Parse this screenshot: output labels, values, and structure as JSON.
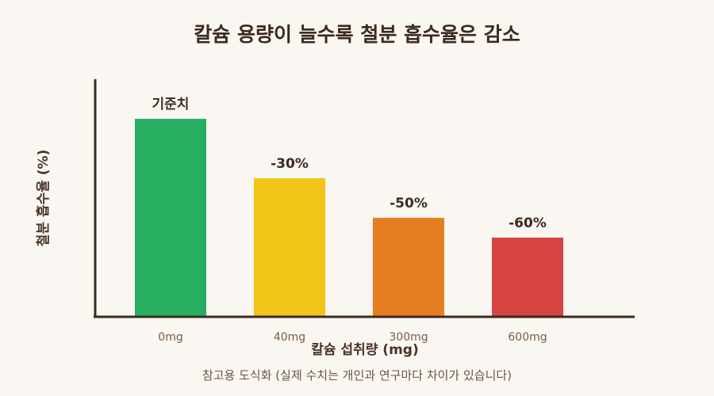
{
  "chart_data": {
    "type": "bar",
    "title": "칼슘 용량이 늘수록 철분 흡수율은 감소",
    "xlabel": "칼슘 섭취량 (mg)",
    "ylabel": "철분 흡수율 (%)",
    "categories": [
      "0mg",
      "40mg",
      "300mg",
      "600mg"
    ],
    "values": [
      100,
      70,
      50,
      40
    ],
    "data_labels": [
      "기준치",
      "-30%",
      "-50%",
      "-60%"
    ],
    "ylim": [
      0,
      100
    ],
    "grid": false,
    "colors": [
      "#27ae60",
      "#f1c418",
      "#e67e22",
      "#d64541"
    ],
    "note": "참고용 도식화 (실제 수치는 개인과 연구마다 차이가 있습니다)"
  },
  "colors": {
    "background": "#faf6f1",
    "axis": "#3b2a1e"
  }
}
